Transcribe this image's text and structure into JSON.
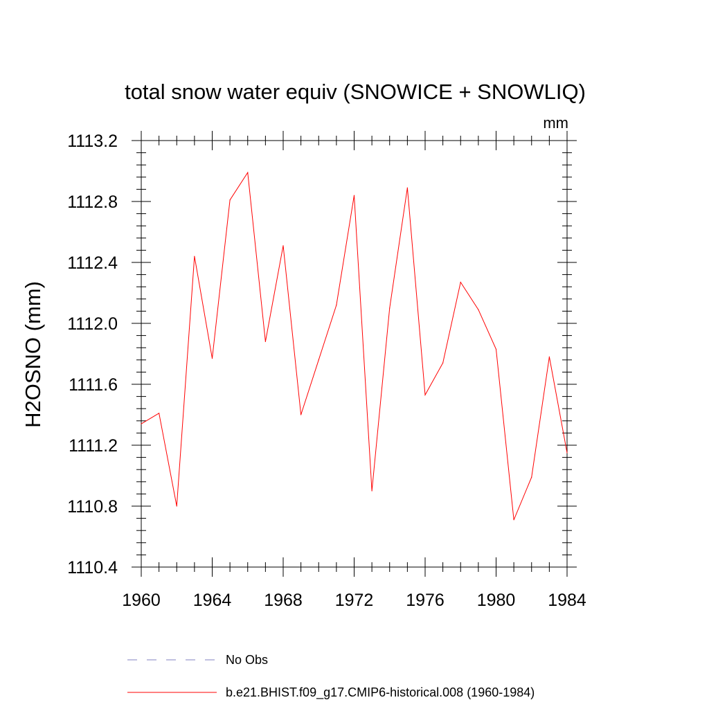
{
  "chart_data": {
    "type": "line",
    "title": "total snow water equiv (SNOWICE + SNOWLIQ)",
    "unit_label": "mm",
    "xlabel": "",
    "ylabel": "H2OSNO  (mm)",
    "xlim": [
      1960,
      1984
    ],
    "ylim": [
      1110.4,
      1113.2
    ],
    "x_ticks": [
      1960,
      1964,
      1968,
      1972,
      1976,
      1980,
      1984
    ],
    "x_tick_labels": [
      "1960",
      "1964",
      "1968",
      "1972",
      "1976",
      "1980",
      "1984"
    ],
    "y_ticks": [
      1110.4,
      1110.8,
      1111.2,
      1111.6,
      1112.0,
      1112.4,
      1112.8,
      1113.2
    ],
    "y_tick_labels": [
      "1110.4",
      "1110.8",
      "1111.2",
      "1111.6",
      "1112.0",
      "1112.4",
      "1112.8",
      "1113.2"
    ],
    "grid": false,
    "legend_position": "bottom",
    "series": [
      {
        "name": "No Obs",
        "color": "#8080c0",
        "dashed": true,
        "x": [],
        "values": []
      },
      {
        "name": "b.e21.BHIST.f09_g17.CMIP6-historical.008 (1960-1984)",
        "color": "#ff0000",
        "dashed": false,
        "x": [
          1960,
          1961,
          1962,
          1963,
          1964,
          1965,
          1966,
          1967,
          1968,
          1969,
          1970,
          1971,
          1972,
          1973,
          1974,
          1975,
          1976,
          1977,
          1978,
          1979,
          1980,
          1981,
          1982,
          1983,
          1984
        ],
        "values": [
          1111.34,
          1111.41,
          1110.8,
          1112.44,
          1111.77,
          1112.81,
          1112.99,
          1111.88,
          1112.51,
          1111.4,
          1111.76,
          1112.12,
          1112.84,
          1110.9,
          1112.1,
          1112.89,
          1111.53,
          1111.74,
          1112.27,
          1112.09,
          1111.83,
          1110.71,
          1110.99,
          1111.78,
          1111.15
        ]
      }
    ]
  }
}
